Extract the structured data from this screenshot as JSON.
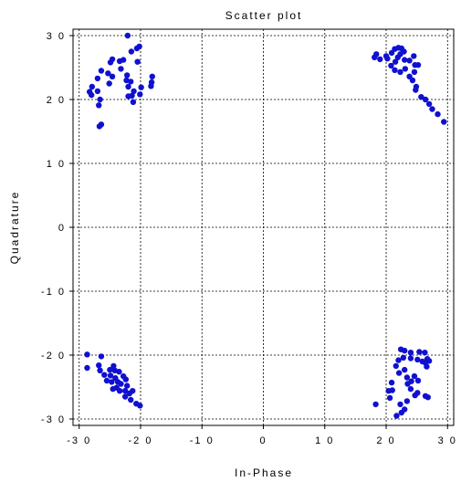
{
  "chart_data": {
    "type": "scatter",
    "title": "Scatter plot",
    "xlabel": "In-Phase",
    "ylabel": "Quadrature",
    "xlim": [
      -31,
      31
    ],
    "ylim": [
      -31,
      31
    ],
    "grid": true,
    "marker_color": "#1010d0",
    "x_ticks": [
      -30,
      -20,
      -10,
      0,
      10,
      20,
      30
    ],
    "y_ticks": [
      -30,
      -20,
      -10,
      0,
      10,
      20,
      30
    ],
    "x_tick_labels": [
      "-3 0",
      "-2 0",
      "-1 0",
      "0",
      "1 0",
      "2 0",
      "3 0"
    ],
    "y_tick_labels": [
      "-3 0",
      "-2 0",
      "-1 0",
      "0",
      "1 0",
      "2 0",
      "3 0"
    ],
    "points": [
      [
        -22.1,
        30.0
      ],
      [
        -20.6,
        28.0
      ],
      [
        -20.2,
        28.3
      ],
      [
        -21.5,
        27.5
      ],
      [
        -20.5,
        25.9
      ],
      [
        -22.8,
        26.2
      ],
      [
        -24.6,
        26.3
      ],
      [
        -23.4,
        26.0
      ],
      [
        -24.9,
        25.8
      ],
      [
        -25.3,
        24.1
      ],
      [
        -24.6,
        23.6
      ],
      [
        -23.2,
        24.8
      ],
      [
        -26.4,
        24.5
      ],
      [
        -27.0,
        23.3
      ],
      [
        -27.9,
        22.0
      ],
      [
        -28.3,
        21.2
      ],
      [
        -28.0,
        20.7
      ],
      [
        -27.0,
        21.3
      ],
      [
        -26.6,
        20.0
      ],
      [
        -26.8,
        19.1
      ],
      [
        -25.1,
        22.5
      ],
      [
        -22.2,
        23.8
      ],
      [
        -22.3,
        23.0
      ],
      [
        -21.6,
        22.8
      ],
      [
        -22.0,
        22.0
      ],
      [
        -21.1,
        21.3
      ],
      [
        -21.4,
        20.6
      ],
      [
        -22.0,
        20.5
      ],
      [
        -21.2,
        19.6
      ],
      [
        -20.1,
        20.8
      ],
      [
        -19.9,
        21.9
      ],
      [
        -18.1,
        23.6
      ],
      [
        -18.2,
        22.7
      ],
      [
        -18.3,
        22.1
      ],
      [
        -26.4,
        16.1
      ],
      [
        -26.7,
        15.8
      ],
      [
        18.1,
        26.6
      ],
      [
        18.4,
        27.1
      ],
      [
        19.0,
        26.3
      ],
      [
        20.0,
        26.8
      ],
      [
        20.2,
        26.4
      ],
      [
        20.9,
        27.3
      ],
      [
        21.4,
        27.9
      ],
      [
        22.0,
        28.1
      ],
      [
        22.5,
        28.0
      ],
      [
        22.9,
        27.5
      ],
      [
        22.3,
        27.1
      ],
      [
        21.9,
        26.6
      ],
      [
        21.5,
        25.9
      ],
      [
        20.8,
        25.3
      ],
      [
        21.4,
        24.6
      ],
      [
        22.3,
        24.3
      ],
      [
        23.1,
        24.8
      ],
      [
        23.0,
        26.2
      ],
      [
        23.8,
        26.1
      ],
      [
        24.7,
        25.4
      ],
      [
        25.2,
        25.4
      ],
      [
        24.6,
        24.3
      ],
      [
        23.8,
        23.6
      ],
      [
        24.3,
        23.0
      ],
      [
        24.9,
        22.0
      ],
      [
        24.8,
        21.5
      ],
      [
        25.7,
        20.4
      ],
      [
        26.4,
        20.0
      ],
      [
        27.0,
        19.3
      ],
      [
        27.5,
        18.5
      ],
      [
        28.4,
        17.7
      ],
      [
        29.4,
        16.5
      ],
      [
        24.5,
        26.8
      ],
      [
        -28.7,
        -19.9
      ],
      [
        -28.7,
        -22.0
      ],
      [
        -26.4,
        -20.2
      ],
      [
        -26.8,
        -21.6
      ],
      [
        -26.6,
        -22.4
      ],
      [
        -25.9,
        -23.1
      ],
      [
        -25.5,
        -24.0
      ],
      [
        -25.0,
        -22.3
      ],
      [
        -24.4,
        -21.7
      ],
      [
        -24.2,
        -22.4
      ],
      [
        -23.5,
        -22.6
      ],
      [
        -24.9,
        -23.2
      ],
      [
        -24.1,
        -23.6
      ],
      [
        -23.7,
        -24.2
      ],
      [
        -22.8,
        -23.3
      ],
      [
        -22.4,
        -23.8
      ],
      [
        -22.2,
        -24.8
      ],
      [
        -23.2,
        -24.5
      ],
      [
        -23.9,
        -25.1
      ],
      [
        -24.5,
        -25.3
      ],
      [
        -23.4,
        -25.6
      ],
      [
        -22.5,
        -25.6
      ],
      [
        -21.8,
        -26.0
      ],
      [
        -21.3,
        -25.6
      ],
      [
        -22.5,
        -26.5
      ],
      [
        -21.6,
        -27.0
      ],
      [
        -20.7,
        -27.6
      ],
      [
        -20.1,
        -27.9
      ],
      [
        -24.7,
        -24.2
      ],
      [
        22.4,
        -19.1
      ],
      [
        23.0,
        -19.3
      ],
      [
        24.0,
        -19.6
      ],
      [
        25.4,
        -19.5
      ],
      [
        26.3,
        -19.6
      ],
      [
        26.7,
        -20.6
      ],
      [
        27.0,
        -20.9
      ],
      [
        26.4,
        -21.2
      ],
      [
        25.9,
        -21.0
      ],
      [
        26.6,
        -21.8
      ],
      [
        25.1,
        -20.7
      ],
      [
        24.0,
        -20.5
      ],
      [
        22.8,
        -20.4
      ],
      [
        22.0,
        -20.8
      ],
      [
        21.6,
        -21.7
      ],
      [
        22.1,
        -22.8
      ],
      [
        23.0,
        -22.3
      ],
      [
        23.4,
        -23.5
      ],
      [
        24.1,
        -24.1
      ],
      [
        24.6,
        -23.3
      ],
      [
        25.2,
        -24.0
      ],
      [
        23.5,
        -24.5
      ],
      [
        24.0,
        -25.3
      ],
      [
        25.1,
        -25.9
      ],
      [
        26.4,
        -26.4
      ],
      [
        26.8,
        -26.6
      ],
      [
        24.7,
        -26.3
      ],
      [
        23.4,
        -27.2
      ],
      [
        22.3,
        -27.7
      ],
      [
        21.0,
        -25.5
      ],
      [
        20.9,
        -24.3
      ],
      [
        20.4,
        -25.6
      ],
      [
        20.6,
        -26.7
      ],
      [
        22.5,
        -29.0
      ],
      [
        23.0,
        -28.5
      ],
      [
        18.3,
        -27.7
      ],
      [
        21.7,
        -29.5
      ]
    ]
  }
}
